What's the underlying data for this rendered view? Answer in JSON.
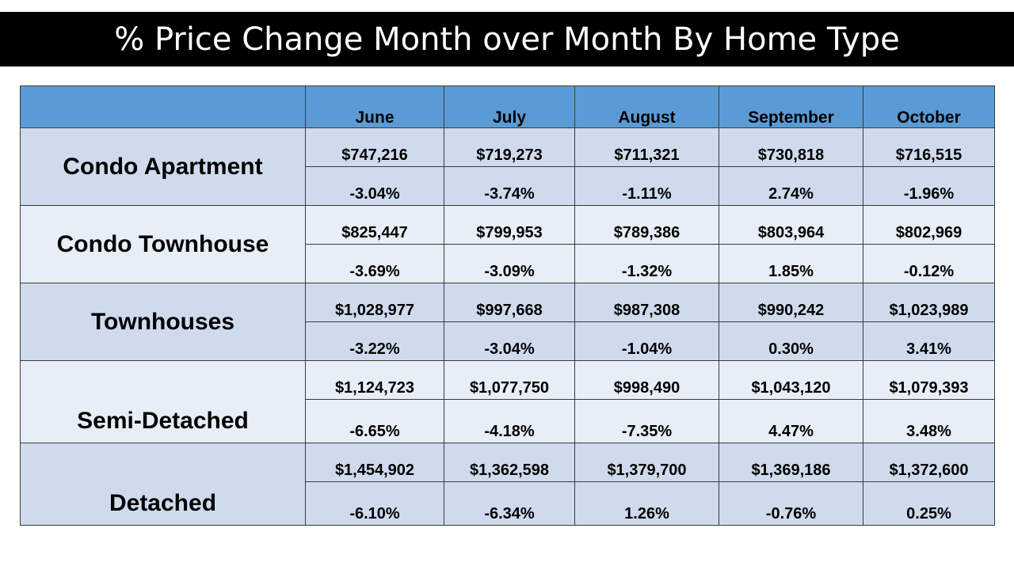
{
  "title": "% Price Change Month over Month By Home Type",
  "months": [
    "June",
    "July",
    "August",
    "September",
    "October"
  ],
  "rows": [
    {
      "type": "Condo Apartment",
      "prices": [
        "$747,216",
        "$719,273",
        "$711,321",
        "$730,818",
        "$716,515"
      ],
      "changes": [
        "-3.04%",
        "-3.74%",
        "-1.11%",
        "2.74%",
        "-1.96%"
      ]
    },
    {
      "type": "Condo Townhouse",
      "prices": [
        "$825,447",
        "$799,953",
        "$789,386",
        "$803,964",
        "$802,969"
      ],
      "changes": [
        "-3.69%",
        "-3.09%",
        "-1.32%",
        "1.85%",
        "-0.12%"
      ]
    },
    {
      "type": "Townhouses",
      "prices": [
        "$1,028,977",
        "$997,668",
        "$987,308",
        "$990,242",
        "$1,023,989"
      ],
      "changes": [
        "-3.22%",
        "-3.04%",
        "-1.04%",
        "0.30%",
        "3.41%"
      ]
    },
    {
      "type": "Semi-Detached",
      "prices": [
        "$1,124,723",
        "$1,077,750",
        "$998,490",
        "$1,043,120",
        "$1,079,393"
      ],
      "changes": [
        "-6.65%",
        "-4.18%",
        "-7.35%",
        "4.47%",
        "3.48%"
      ]
    },
    {
      "type": "Detached",
      "prices": [
        "$1,454,902",
        "$1,362,598",
        "$1,379,700",
        "$1,369,186",
        "$1,372,600"
      ],
      "changes": [
        "-6.10%",
        "-6.34%",
        "1.26%",
        "-0.76%",
        "0.25%"
      ]
    }
  ],
  "colors": {
    "title_bg": "#000000",
    "title_text": "#ffffff",
    "header_bg": "#5b9bd5",
    "row_dark": "#cfdbed",
    "row_light": "#e8eef7"
  }
}
